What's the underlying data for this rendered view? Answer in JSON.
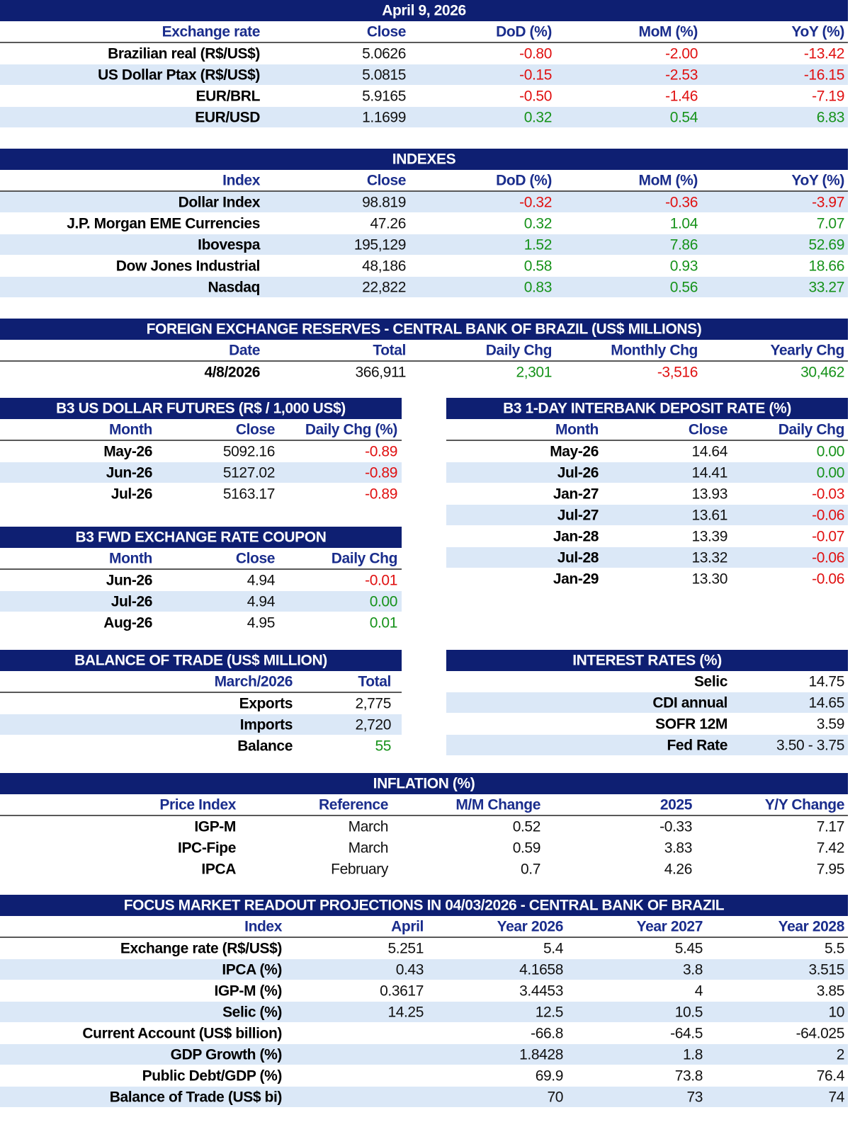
{
  "sections": [
    {
      "title": "April 9, 2026",
      "header": [
        "Exchange rate",
        "Close",
        "DoD (%)",
        "MoM (%)",
        "YoY (%)"
      ],
      "rows": [
        [
          "Brazilian real (R$/US$)",
          "5.0626",
          "-0.80",
          "-2.00",
          "-13.42"
        ],
        [
          "US Dollar Ptax (R$/US$)",
          "5.0815",
          "-0.15",
          "-2.53",
          "-16.15"
        ],
        [
          "EUR/BRL",
          "5.9165",
          "-0.50",
          "-1.46",
          "-7.19"
        ],
        [
          "EUR/USD",
          "1.1699",
          "0.32",
          "0.54",
          "6.83"
        ]
      ]
    },
    {
      "title": "INDEXES",
      "header": [
        "Index",
        "Close",
        "DoD (%)",
        "MoM (%)",
        "YoY (%)"
      ],
      "rows": [
        [
          "Dollar Index",
          "98.819",
          "-0.32",
          "-0.36",
          "-3.97"
        ],
        [
          "J.P. Morgan EME Currencies",
          "47.26",
          "0.32",
          "1.04",
          "7.07"
        ],
        [
          "Ibovespa",
          "195,129",
          "1.52",
          "7.86",
          "52.69"
        ],
        [
          "Dow Jones Industrial",
          "48,186",
          "0.58",
          "0.93",
          "18.66"
        ],
        [
          "Nasdaq",
          "22,822",
          "0.83",
          "0.56",
          "33.27"
        ]
      ]
    },
    {
      "title": "FOREIGN EXCHANGE RESERVES - CENTRAL BANK OF BRAZIL (US$ MILLIONS)",
      "header": [
        "Date",
        "Total",
        "Daily Chg",
        "Monthly Chg",
        "Yearly Chg"
      ],
      "rows": [
        [
          "4/8/2026",
          "366,911",
          "2,301",
          "-3,516",
          "30,462"
        ]
      ]
    },
    {
      "title": "B3 US DOLLAR FUTURES (R$ / 1,000 US$)",
      "header": [
        "Month",
        "Close",
        "Daily Chg (%)"
      ],
      "rows": [
        [
          "May-26",
          "5092.16",
          "-0.89"
        ],
        [
          "Jun-26",
          "5127.02",
          "-0.89"
        ],
        [
          "Jul-26",
          "5163.17",
          "-0.89"
        ]
      ]
    },
    {
      "title": "B3 1-DAY INTERBANK DEPOSIT RATE (%)",
      "header": [
        "Month",
        "Close",
        "Daily Chg"
      ],
      "rows": [
        [
          "May-26",
          "14.64",
          "0.00"
        ],
        [
          "Jul-26",
          "14.41",
          "0.00"
        ],
        [
          "Jan-27",
          "13.93",
          "-0.03"
        ],
        [
          "Jul-27",
          "13.61",
          "-0.06"
        ],
        [
          "Jan-28",
          "13.39",
          "-0.07"
        ],
        [
          "Jul-28",
          "13.32",
          "-0.06"
        ],
        [
          "Jan-29",
          "13.30",
          "-0.06"
        ]
      ]
    },
    {
      "title": "B3 FWD EXCHANGE RATE COUPON",
      "header": [
        "Month",
        "Close",
        "Daily Chg"
      ],
      "rows": [
        [
          "Jun-26",
          "4.94",
          "-0.01"
        ],
        [
          "Jul-26",
          "4.94",
          "0.00"
        ],
        [
          "Aug-26",
          "4.95",
          "0.01"
        ]
      ]
    },
    {
      "title": "BALANCE OF TRADE (US$ MILLION)",
      "header": [
        "March/2026",
        "Total"
      ],
      "rows": [
        [
          "Exports",
          "2,775"
        ],
        [
          "Imports",
          "2,720"
        ],
        [
          "Balance",
          "55"
        ]
      ]
    },
    {
      "title": "INTEREST RATES (%)",
      "rows": [
        [
          "Selic",
          "14.75"
        ],
        [
          "CDI annual",
          "14.65"
        ],
        [
          "SOFR 12M",
          "3.59"
        ],
        [
          "Fed Rate",
          "3.50 - 3.75"
        ]
      ]
    },
    {
      "title": "INFLATION (%)",
      "header": [
        "Price Index",
        "Reference",
        "M/M Change",
        "2025",
        "Y/Y Change"
      ],
      "rows": [
        [
          "IGP-M",
          "March",
          "0.52",
          "-0.33",
          "7.17"
        ],
        [
          "IPC-Fipe",
          "March",
          "0.59",
          "3.83",
          "7.42"
        ],
        [
          "IPCA",
          "February",
          "0.7",
          "4.26",
          "7.95"
        ]
      ]
    },
    {
      "title": "FOCUS MARKET READOUT PROJECTIONS IN 04/03/2026 - CENTRAL BANK OF BRAZIL",
      "header": [
        "Index",
        "April",
        "Year 2026",
        "Year 2027",
        "Year 2028"
      ],
      "rows": [
        [
          "Exchange rate (R$/US$)",
          "5.251",
          "5.4",
          "5.45",
          "5.5"
        ],
        [
          "IPCA (%)",
          "0.43",
          "4.1658",
          "3.8",
          "3.515"
        ],
        [
          "IGP-M (%)",
          "0.3617",
          "3.4453",
          "4",
          "3.85"
        ],
        [
          "Selic (%)",
          "14.25",
          "12.5",
          "10.5",
          "10"
        ],
        [
          "Current Account (US$ billion)",
          null,
          "-66.8",
          "-64.5",
          "-64.025"
        ],
        [
          "GDP Growth (%)",
          null,
          "1.8428",
          "1.8",
          "2"
        ],
        [
          "Public Debt/GDP (%)",
          null,
          "69.9",
          "73.8",
          "76.4"
        ],
        [
          "Balance of Trade (US$ bi)",
          null,
          "70",
          "73",
          "74"
        ]
      ]
    }
  ]
}
